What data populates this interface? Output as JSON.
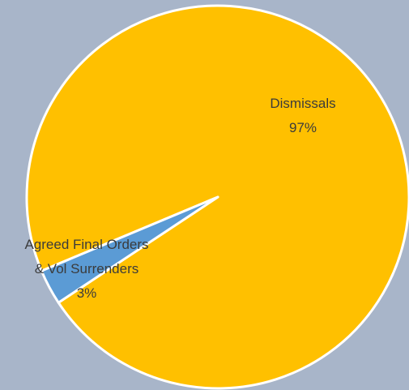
{
  "chart_data": {
    "type": "pie",
    "title": "",
    "slices": [
      {
        "name": "Dismissals",
        "value": 97,
        "label": "97%",
        "color": "#ffc000"
      },
      {
        "name": "Agreed Final Orders & Vol Surrenders",
        "label_lines": [
          "Agreed Final Orders",
          "& Vol Surrenders"
        ],
        "value": 3,
        "label": "3%",
        "color": "#5b9bd5"
      }
    ],
    "background": "#a8b5c9",
    "slice_border_color": "#ffffff"
  }
}
